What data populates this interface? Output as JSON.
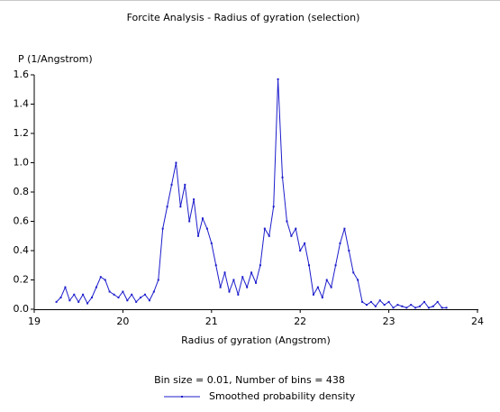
{
  "chart_data": {
    "type": "line",
    "title": "Forcite Analysis - Radius of gyration (selection)",
    "y_axis_label": "P (1/Angstrom)",
    "x_axis_label": "Radius of gyration (Angstrom)",
    "footer": "Bin size = 0.01, Number of bins = 438",
    "xlim": [
      19,
      24
    ],
    "xticks": [
      19,
      20,
      21,
      22,
      23,
      24
    ],
    "ylim": [
      0,
      1.6
    ],
    "yticks": [
      {
        "value": 0,
        "label": "0.0"
      },
      0.2,
      0.4,
      0.6,
      0.8,
      {
        "value": 1,
        "label": "1.0"
      },
      1.2,
      1.4,
      1.6
    ],
    "x": [
      19.25,
      19.3,
      19.35,
      19.4,
      19.45,
      19.5,
      19.55,
      19.6,
      19.65,
      19.7,
      19.75,
      19.8,
      19.85,
      19.9,
      19.95,
      20,
      20.05,
      20.1,
      20.15,
      20.2,
      20.25,
      20.3,
      20.35,
      20.4,
      20.45,
      20.5,
      20.55,
      20.6,
      20.65,
      20.7,
      20.75,
      20.8,
      20.85,
      20.9,
      20.95,
      21,
      21.05,
      21.1,
      21.15,
      21.2,
      21.25,
      21.3,
      21.35,
      21.4,
      21.45,
      21.5,
      21.55,
      21.6,
      21.65,
      21.7,
      21.75,
      21.8,
      21.85,
      21.9,
      21.95,
      22,
      22.05,
      22.1,
      22.15,
      22.2,
      22.25,
      22.3,
      22.35,
      22.4,
      22.45,
      22.5,
      22.55,
      22.6,
      22.65,
      22.7,
      22.75,
      22.8,
      22.85,
      22.9,
      22.95,
      23,
      23.05,
      23.1,
      23.15,
      23.2,
      23.25,
      23.3,
      23.35,
      23.4,
      23.45,
      23.5,
      23.55,
      23.6,
      23.65
    ],
    "series": [
      {
        "name": "Smoothed probability density",
        "color": "#1c1ccc",
        "values": [
          0.05,
          0.08,
          0.15,
          0.06,
          0.1,
          0.05,
          0.1,
          0.04,
          0.08,
          0.15,
          0.22,
          0.2,
          0.12,
          0.1,
          0.08,
          0.12,
          0.06,
          0.1,
          0.05,
          0.08,
          0.1,
          0.06,
          0.12,
          0.2,
          0.55,
          0.7,
          0.85,
          1.0,
          0.7,
          0.85,
          0.6,
          0.75,
          0.5,
          0.62,
          0.55,
          0.45,
          0.3,
          0.15,
          0.25,
          0.12,
          0.2,
          0.1,
          0.22,
          0.15,
          0.25,
          0.18,
          0.3,
          0.55,
          0.5,
          0.7,
          1.57,
          0.9,
          0.6,
          0.5,
          0.55,
          0.4,
          0.45,
          0.3,
          0.1,
          0.15,
          0.08,
          0.2,
          0.15,
          0.3,
          0.45,
          0.55,
          0.4,
          0.25,
          0.2,
          0.05,
          0.03,
          0.05,
          0.02,
          0.06,
          0.03,
          0.05,
          0.01,
          0.03,
          0.02,
          0.01,
          0.03,
          0.01,
          0.02,
          0.05,
          0.01,
          0.02,
          0.05,
          0.01,
          0.01
        ]
      }
    ]
  }
}
